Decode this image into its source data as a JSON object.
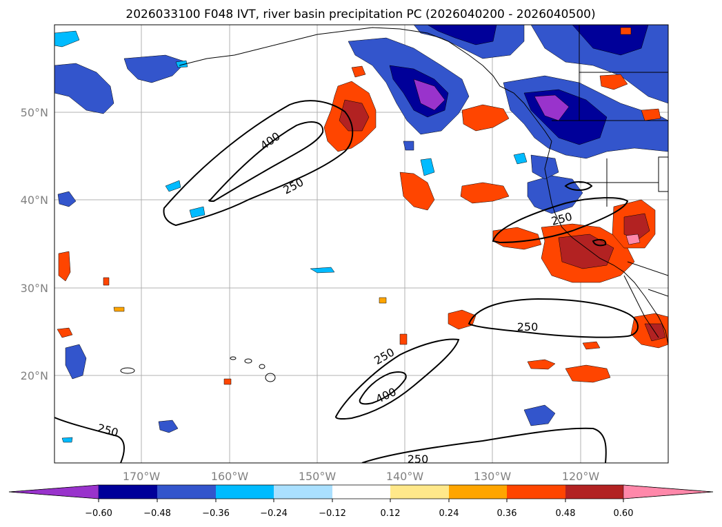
{
  "title": "2026033100 F048 IVT, river basin precipitation PC (2026040200 - 2026040500)",
  "lat_labels": [
    "50°N",
    "40°N",
    "30°N",
    "20°N"
  ],
  "lon_labels": [
    "170°W",
    "160°W",
    "150°W",
    "140°W",
    "130°W",
    "120°W"
  ],
  "colorbar": {
    "colors": [
      "#9933cc",
      "#000099",
      "#3355cc",
      "#00bbff",
      "#aae0ff",
      "#ffffff",
      "#ffe88a",
      "#ffa500",
      "#ff4500",
      "#b22222",
      "#ff88aa"
    ],
    "ticks": [
      "−0.60",
      "−0.48",
      "−0.36",
      "−0.24",
      "−0.12",
      "0.12",
      "0.24",
      "0.36",
      "0.48",
      "0.60"
    ]
  },
  "contours": {
    "labels": [
      "400",
      "250",
      "250",
      "250",
      "250",
      "400",
      "250",
      "250"
    ]
  }
}
